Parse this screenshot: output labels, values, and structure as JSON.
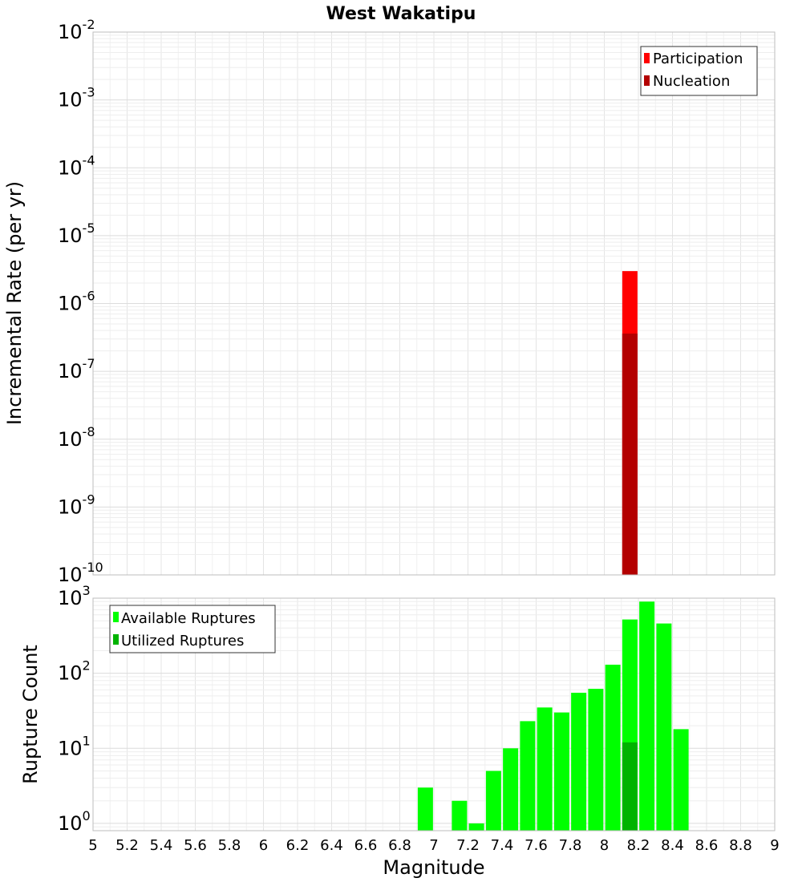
{
  "chart_data": [
    {
      "type": "bar",
      "title": "West Wakatipu",
      "ylabel": "Incremental Rate (per yr)",
      "xlabel": "",
      "xlim": [
        5,
        9
      ],
      "ylim": [
        1e-10,
        0.01
      ],
      "yscale": "log",
      "y_ticks": [
        {
          "base": "10",
          "exp": "-2"
        },
        {
          "base": "10",
          "exp": "-3"
        },
        {
          "base": "10",
          "exp": "-4"
        },
        {
          "base": "10",
          "exp": "-5"
        },
        {
          "base": "10",
          "exp": "-6"
        },
        {
          "base": "10",
          "exp": "-7"
        },
        {
          "base": "10",
          "exp": "-8"
        },
        {
          "base": "10",
          "exp": "-9"
        },
        {
          "base": "10",
          "exp": "-10"
        }
      ],
      "legend_position": "top-right",
      "series": [
        {
          "name": "Participation",
          "color": "#ff0000",
          "x": [
            8.15
          ],
          "values": [
            3e-06
          ]
        },
        {
          "name": "Nucleation",
          "color": "#b30000",
          "x": [
            8.15
          ],
          "values": [
            3.6e-07
          ]
        }
      ]
    },
    {
      "type": "bar",
      "title": "",
      "ylabel": "Rupture Count",
      "xlabel": "Magnitude",
      "xlim": [
        5,
        9
      ],
      "ylim": [
        0.8,
        1000
      ],
      "yscale": "log",
      "x_tick_labels": [
        "5",
        "5.2",
        "5.4",
        "5.6",
        "5.8",
        "6",
        "6.2",
        "6.4",
        "6.6",
        "6.8",
        "7",
        "7.2",
        "7.4",
        "7.6",
        "7.8",
        "8",
        "8.2",
        "8.4",
        "8.6",
        "8.8",
        "9"
      ],
      "y_ticks": [
        {
          "base": "10",
          "exp": "3"
        },
        {
          "base": "10",
          "exp": "2"
        },
        {
          "base": "10",
          "exp": "1"
        },
        {
          "base": "10",
          "exp": "0"
        }
      ],
      "legend_position": "top-left",
      "series": [
        {
          "name": "Available Ruptures",
          "color": "#00ff00",
          "x": [
            6.95,
            7.15,
            7.25,
            7.35,
            7.45,
            7.55,
            7.65,
            7.75,
            7.85,
            7.95,
            8.05,
            8.15,
            8.25,
            8.35,
            8.45
          ],
          "values": [
            3,
            2,
            1,
            5,
            10,
            23,
            35,
            30,
            55,
            62,
            130,
            520,
            900,
            460,
            18
          ]
        },
        {
          "name": "Utilized Ruptures",
          "color": "#00b300",
          "x": [
            8.15
          ],
          "values": [
            12
          ]
        }
      ]
    }
  ]
}
